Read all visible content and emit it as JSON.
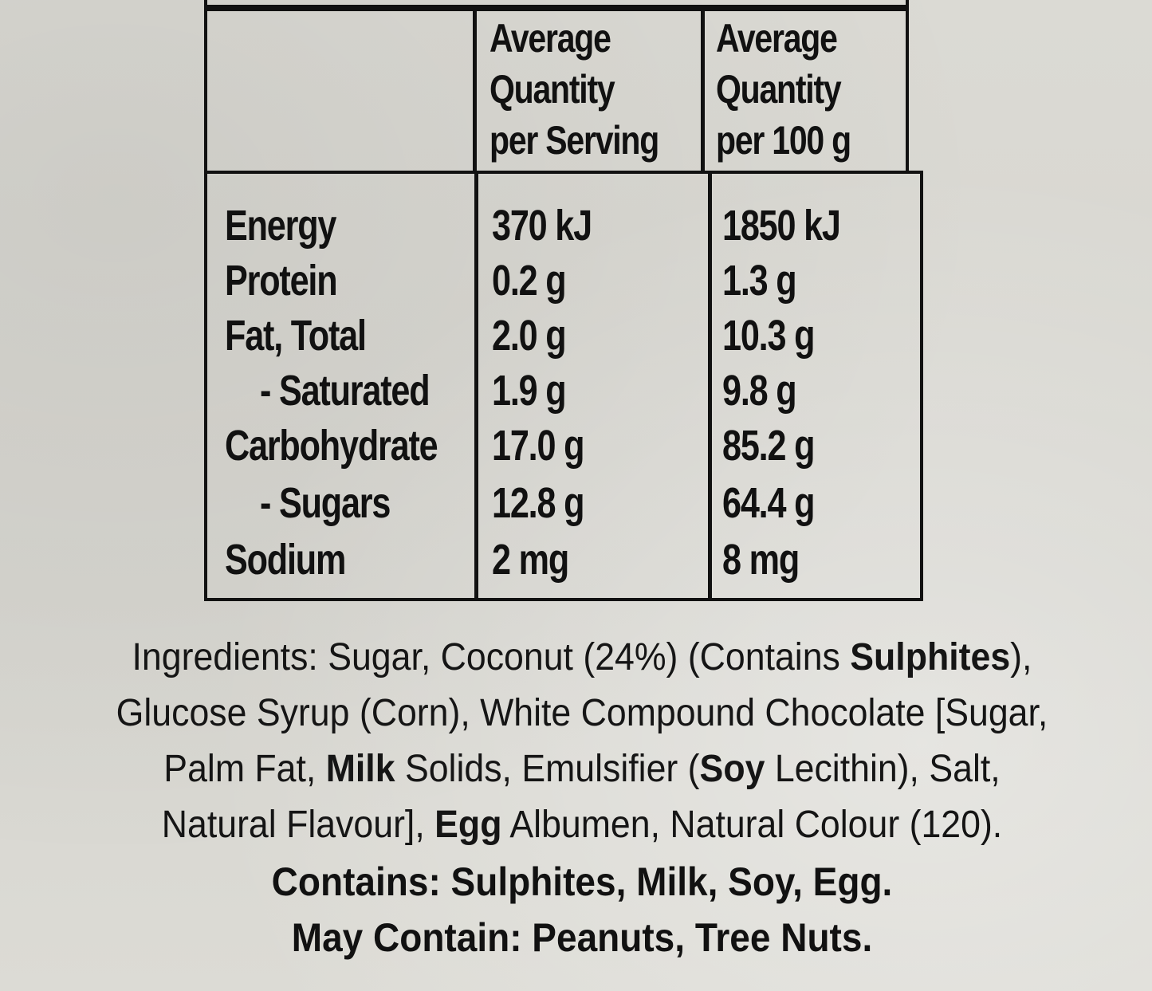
{
  "nutrition_table": {
    "columns": [
      {
        "lines": [
          "Average",
          "Quantity",
          "per Serving"
        ]
      },
      {
        "lines": [
          "Average",
          "Quantity",
          "per 100 g"
        ]
      }
    ],
    "rows": [
      {
        "label": "Energy",
        "per_serving": "370 kJ",
        "per_100g": "1850 kJ"
      },
      {
        "label": "Protein",
        "per_serving": "0.2 g",
        "per_100g": "1.3 g"
      },
      {
        "label": "Fat, Total",
        "per_serving": "2.0 g",
        "per_100g": "10.3 g"
      },
      {
        "label": "- Saturated",
        "per_serving": "1.9 g",
        "per_100g": "9.8 g"
      },
      {
        "label": "Carbohydrate",
        "per_serving": "17.0 g",
        "per_100g": "85.2 g"
      },
      {
        "label": "- Sugars",
        "per_serving": "12.8 g",
        "per_100g": "64.4 g"
      },
      {
        "label": "Sodium",
        "per_serving": "2 mg",
        "per_100g": "8 mg"
      }
    ]
  },
  "ingredients": {
    "line1": {
      "a": "Ingredients: Sugar, Coconut (24%) (Contains ",
      "b": "Sulphites",
      "c": "),"
    },
    "line2": {
      "a": "Glucose Syrup (Corn), White Compound Chocolate [Sugar,"
    },
    "line3": {
      "a": "Palm Fat, ",
      "b": "Milk",
      "c": " Solids, Emulsifier (",
      "d": "Soy",
      "e": " Lecithin), Salt,"
    },
    "line4": {
      "a": "Natural Flavour], ",
      "b": "Egg",
      "c": " Albumen, Natural Colour (120)."
    }
  },
  "contains": "Contains: Sulphites, Milk, Soy, Egg.",
  "may_contain": "May Contain: Peanuts, Tree Nuts.",
  "colors": {
    "paper": "#d9d8d2",
    "ink": "#111111"
  }
}
